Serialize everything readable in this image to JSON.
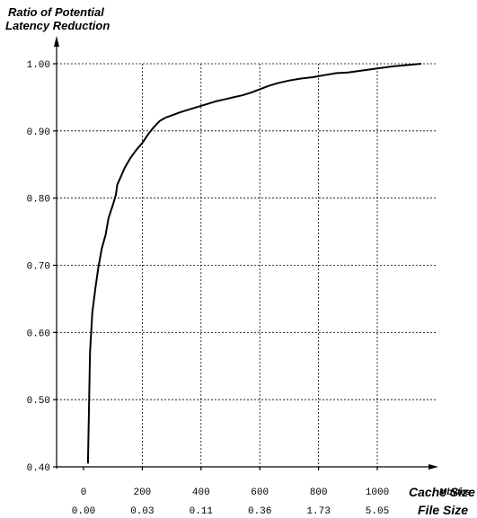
{
  "chart_data": {
    "type": "line",
    "title": "",
    "ylabel": [
      "Ratio of Potential",
      "Latency Reduction"
    ],
    "x_unit": "Mbytes",
    "x_axis_name": "Cache Size",
    "secondary_axis_name": "File Size",
    "xlim": [
      0,
      1200
    ],
    "ylim": [
      0.4,
      1.0
    ],
    "y_ticks": [
      0.4,
      0.5,
      0.6,
      0.7,
      0.8,
      0.9,
      1.0
    ],
    "y_tick_labels": [
      "0.40",
      "0.50",
      "0.60",
      "0.70",
      "0.80",
      "0.90",
      "1.00"
    ],
    "x_ticks": [
      0,
      200,
      400,
      600,
      800,
      1000
    ],
    "x_tick_labels": [
      "0",
      "200",
      "400",
      "600",
      "800",
      "1000"
    ],
    "secondary_tick_labels": [
      "0.00",
      "0.03",
      "0.11",
      "0.36",
      "1.73",
      "5.05"
    ],
    "grid": true,
    "series": [
      {
        "x": [
          15,
          22,
          30,
          40,
          50,
          62,
          75,
          85,
          100,
          110,
          115,
          125,
          140,
          160,
          180,
          200,
          220,
          240,
          260,
          280,
          300,
          330,
          360,
          390,
          420,
          450,
          480,
          510,
          540,
          570,
          600,
          630,
          660,
          700,
          740,
          780,
          820,
          860,
          900,
          950,
          1000,
          1050,
          1100,
          1150
        ],
        "y": [
          0.405,
          0.57,
          0.63,
          0.665,
          0.695,
          0.725,
          0.745,
          0.77,
          0.79,
          0.805,
          0.82,
          0.83,
          0.845,
          0.86,
          0.872,
          0.882,
          0.895,
          0.906,
          0.915,
          0.92,
          0.923,
          0.928,
          0.932,
          0.936,
          0.94,
          0.944,
          0.947,
          0.95,
          0.953,
          0.957,
          0.962,
          0.967,
          0.971,
          0.975,
          0.978,
          0.98,
          0.983,
          0.986,
          0.987,
          0.99,
          0.993,
          0.996,
          0.998,
          1.0
        ]
      }
    ]
  }
}
